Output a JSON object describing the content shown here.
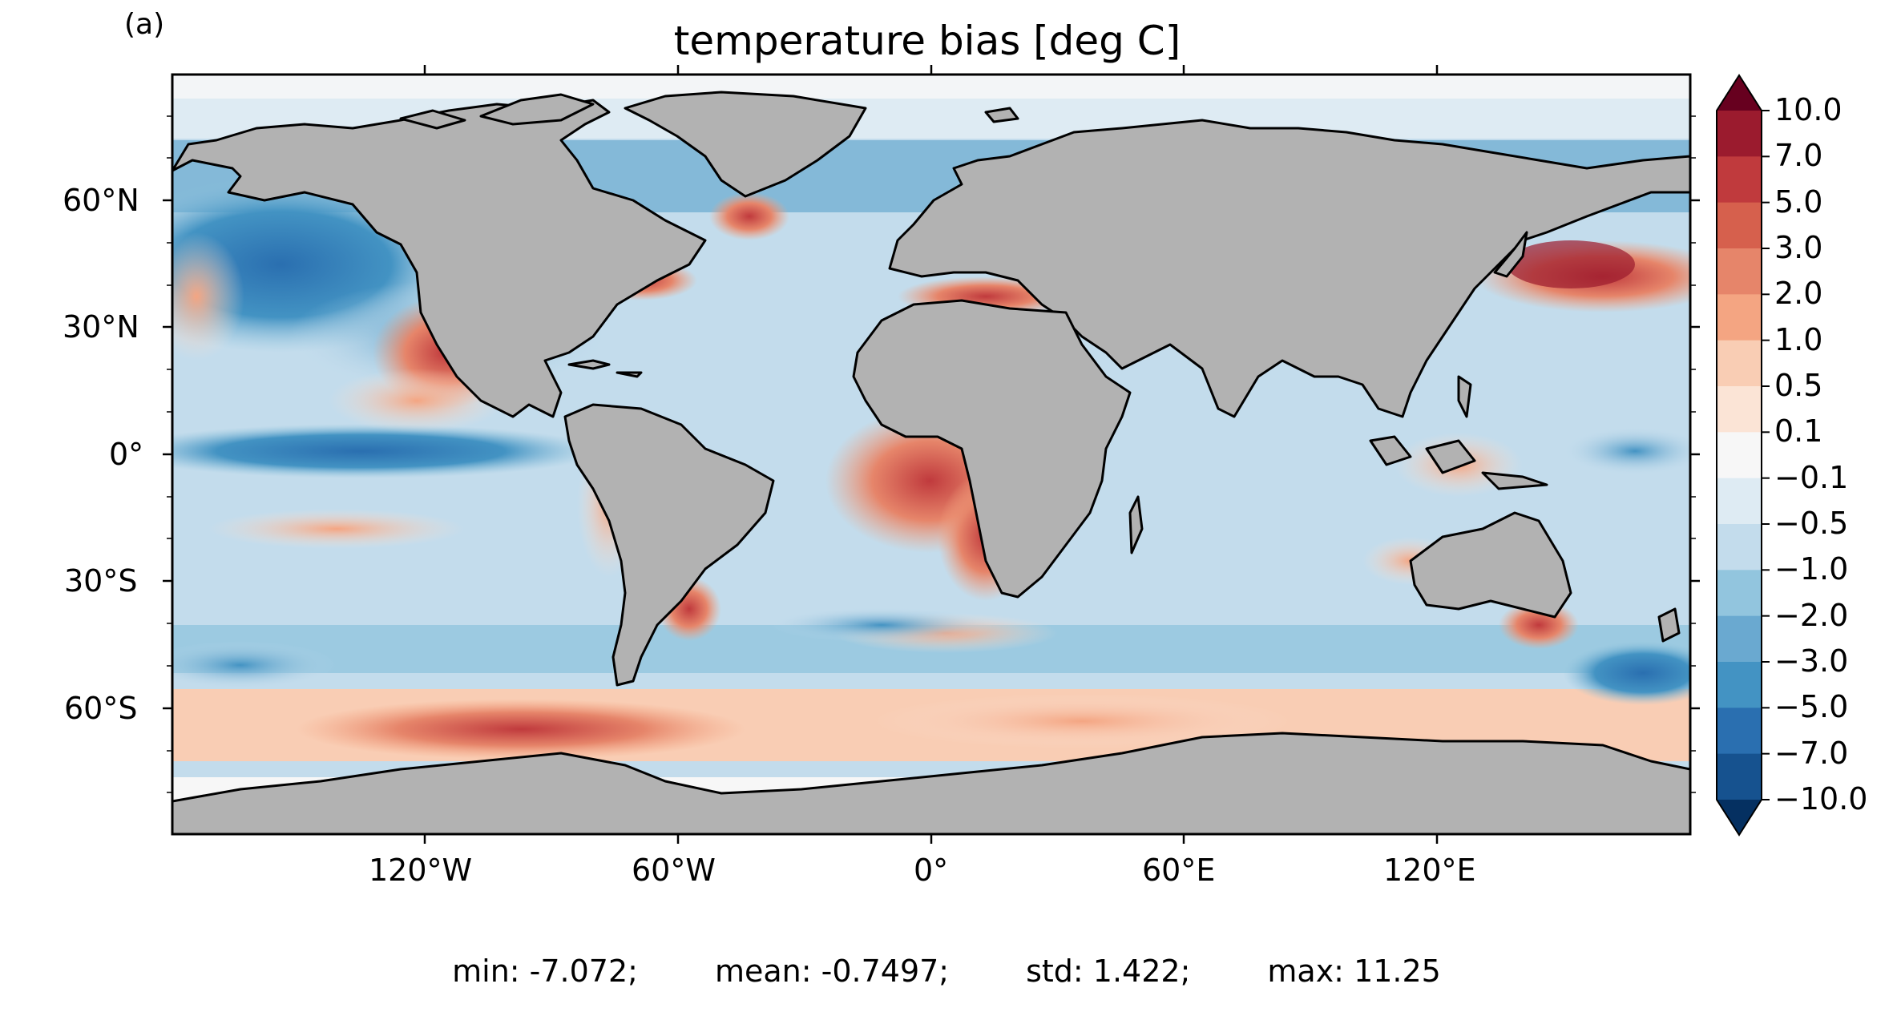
{
  "panel_label": "(a)",
  "title": "temperature bias [deg C]",
  "axes": {
    "lat_labels": [
      "60°N",
      "30°N",
      "0°",
      "30°S",
      "60°S"
    ],
    "lon_labels": [
      "120°W",
      "60°W",
      "0°",
      "60°E",
      "120°E"
    ]
  },
  "colorbar": {
    "labels": [
      "10.0",
      "7.0",
      "5.0",
      "3.0",
      "2.0",
      "1.0",
      "0.5",
      "0.1",
      "−0.1",
      "−0.5",
      "−1.0",
      "−2.0",
      "−3.0",
      "−5.0",
      "−7.0",
      "−10.0"
    ],
    "colors": [
      "#67001f",
      "#9b1b2e",
      "#c03a3d",
      "#d6604d",
      "#e6856a",
      "#f4a582",
      "#f9cdb4",
      "#fbe4d6",
      "#f7f7f7",
      "#deebf3",
      "#c3dcec",
      "#92c5de",
      "#6aa9d0",
      "#4393c3",
      "#2a6fb0",
      "#16528f",
      "#053061"
    ],
    "extend": "both"
  },
  "colors": {
    "land": "#b2b2b2",
    "coast": "#000000"
  },
  "stats": {
    "min": "min: -7.072;",
    "mean": "mean: -0.7497;",
    "std": "std: 1.422;",
    "max": "max: 11.25"
  }
}
